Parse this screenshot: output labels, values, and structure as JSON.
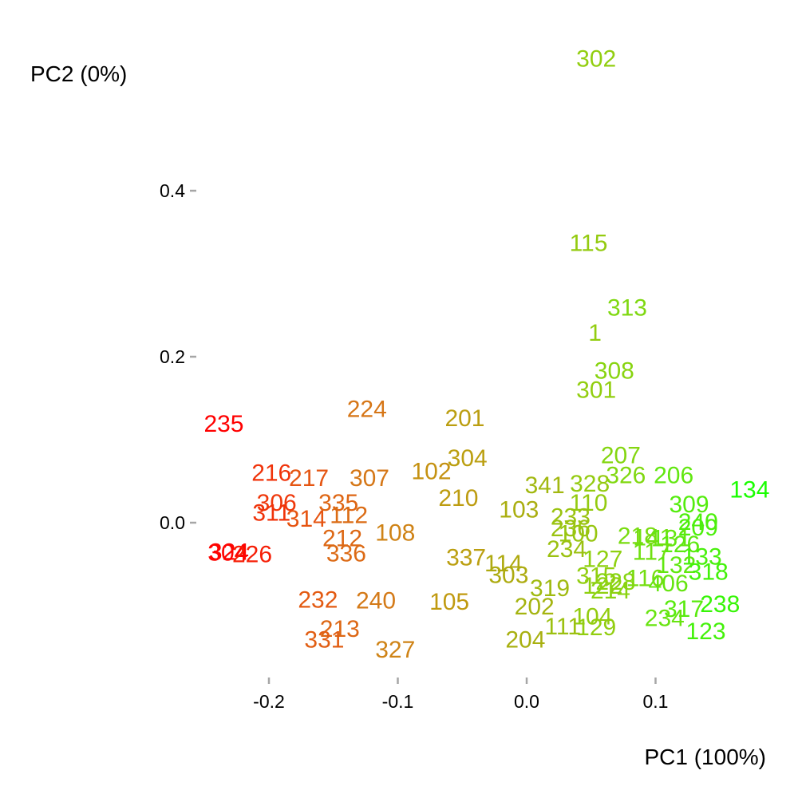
{
  "chart_data": {
    "type": "scatter",
    "xlabel": "PC1 (100%)",
    "ylabel": "PC2 (0%)",
    "xlim": [
      -0.255,
      0.185
    ],
    "ylim": [
      -0.135,
      0.52
    ],
    "xticks": [
      -0.2,
      -0.1,
      0.0,
      0.1
    ],
    "xtick_labels": [
      "-0.2",
      "-0.1",
      "0.0",
      "0.1"
    ],
    "yticks": [
      0.0,
      0.2,
      0.4
    ],
    "ytick_labels": [
      "0.0",
      "0.2",
      "0.4"
    ],
    "grid": false,
    "legend": "none",
    "color_scale": [
      "#ff0000",
      "#e85010",
      "#d47a18",
      "#c09a10",
      "#a8b010",
      "#90d010",
      "#60e810",
      "#18ff00"
    ],
    "points": [
      {
        "label": "302",
        "x": 0.054,
        "y": 0.56
      },
      {
        "label": "115",
        "x": 0.048,
        "y": 0.338
      },
      {
        "label": "313",
        "x": 0.078,
        "y": 0.26
      },
      {
        "label": "1",
        "x": 0.053,
        "y": 0.23
      },
      {
        "label": "308",
        "x": 0.068,
        "y": 0.184
      },
      {
        "label": "301",
        "x": 0.054,
        "y": 0.161
      },
      {
        "label": "235",
        "x": -0.235,
        "y": 0.12
      },
      {
        "label": "224",
        "x": -0.124,
        "y": 0.138
      },
      {
        "label": "201",
        "x": -0.048,
        "y": 0.127
      },
      {
        "label": "207",
        "x": 0.073,
        "y": 0.082
      },
      {
        "label": "304",
        "x": -0.046,
        "y": 0.079
      },
      {
        "label": "102",
        "x": -0.074,
        "y": 0.063
      },
      {
        "label": "326",
        "x": 0.077,
        "y": 0.058
      },
      {
        "label": "206",
        "x": 0.114,
        "y": 0.058
      },
      {
        "label": "216",
        "x": -0.198,
        "y": 0.061
      },
      {
        "label": "217",
        "x": -0.169,
        "y": 0.055
      },
      {
        "label": "307",
        "x": -0.122,
        "y": 0.055
      },
      {
        "label": "134",
        "x": 0.173,
        "y": 0.041
      },
      {
        "label": "341",
        "x": 0.014,
        "y": 0.046
      },
      {
        "label": "328",
        "x": 0.049,
        "y": 0.048
      },
      {
        "label": "210",
        "x": -0.053,
        "y": 0.031
      },
      {
        "label": "110",
        "x": 0.048,
        "y": 0.025
      },
      {
        "label": "309",
        "x": 0.126,
        "y": 0.023
      },
      {
        "label": "306",
        "x": -0.194,
        "y": 0.025
      },
      {
        "label": "335",
        "x": -0.146,
        "y": 0.025
      },
      {
        "label": "103",
        "x": -0.006,
        "y": 0.017
      },
      {
        "label": "311",
        "x": -0.198,
        "y": 0.013
      },
      {
        "label": "314",
        "x": -0.171,
        "y": 0.006
      },
      {
        "label": "112",
        "x": -0.138,
        "y": 0.01
      },
      {
        "label": "233",
        "x": 0.034,
        "y": 0.008
      },
      {
        "label": "240",
        "x": 0.133,
        "y": 0.002
      },
      {
        "label": "209",
        "x": 0.133,
        "y": -0.005
      },
      {
        "label": "236",
        "x": 0.034,
        "y": -0.006
      },
      {
        "label": "212",
        "x": -0.143,
        "y": -0.018
      },
      {
        "label": "108",
        "x": -0.102,
        "y": -0.011
      },
      {
        "label": "100",
        "x": 0.04,
        "y": -0.012
      },
      {
        "label": "218",
        "x": 0.086,
        "y": -0.015
      },
      {
        "label": "141",
        "x": 0.098,
        "y": -0.017
      },
      {
        "label": "131",
        "x": 0.112,
        "y": -0.018
      },
      {
        "label": "126",
        "x": 0.119,
        "y": -0.025
      },
      {
        "label": "234",
        "x": 0.031,
        "y": -0.031
      },
      {
        "label": "117",
        "x": 0.097,
        "y": -0.034
      },
      {
        "label": "324",
        "x": -0.231,
        "y": -0.034
      },
      {
        "label": "304",
        "x": -0.232,
        "y": -0.035
      },
      {
        "label": "226",
        "x": -0.213,
        "y": -0.037
      },
      {
        "label": "336",
        "x": -0.14,
        "y": -0.036
      },
      {
        "label": "337",
        "x": -0.047,
        "y": -0.041
      },
      {
        "label": "114",
        "x": -0.018,
        "y": -0.048
      },
      {
        "label": "133",
        "x": 0.136,
        "y": -0.04
      },
      {
        "label": "127",
        "x": 0.059,
        "y": -0.043
      },
      {
        "label": "132",
        "x": 0.116,
        "y": -0.05
      },
      {
        "label": "303",
        "x": -0.014,
        "y": -0.062
      },
      {
        "label": "318",
        "x": 0.141,
        "y": -0.058
      },
      {
        "label": "315",
        "x": 0.054,
        "y": -0.063
      },
      {
        "label": "116",
        "x": 0.092,
        "y": -0.066
      },
      {
        "label": "228",
        "x": 0.069,
        "y": -0.07
      },
      {
        "label": "122",
        "x": 0.059,
        "y": -0.075
      },
      {
        "label": "406",
        "x": 0.11,
        "y": -0.072
      },
      {
        "label": "319",
        "x": 0.018,
        "y": -0.078
      },
      {
        "label": "214",
        "x": 0.065,
        "y": -0.081
      },
      {
        "label": "232",
        "x": -0.162,
        "y": -0.092
      },
      {
        "label": "240",
        "x": -0.117,
        "y": -0.093
      },
      {
        "label": "105",
        "x": -0.06,
        "y": -0.094
      },
      {
        "label": "202",
        "x": 0.006,
        "y": -0.1
      },
      {
        "label": "104",
        "x": 0.051,
        "y": -0.112
      },
      {
        "label": "111",
        "x": 0.028,
        "y": -0.124
      },
      {
        "label": "129",
        "x": 0.054,
        "y": -0.125
      },
      {
        "label": "317",
        "x": 0.122,
        "y": -0.103
      },
      {
        "label": "238",
        "x": 0.15,
        "y": -0.097
      },
      {
        "label": "234",
        "x": 0.107,
        "y": -0.114
      },
      {
        "label": "123",
        "x": 0.139,
        "y": -0.13
      },
      {
        "label": "213",
        "x": -0.145,
        "y": -0.127
      },
      {
        "label": "331",
        "x": -0.157,
        "y": -0.14
      },
      {
        "label": "204",
        "x": -0.001,
        "y": -0.14
      },
      {
        "label": "327",
        "x": -0.102,
        "y": -0.152
      }
    ]
  }
}
